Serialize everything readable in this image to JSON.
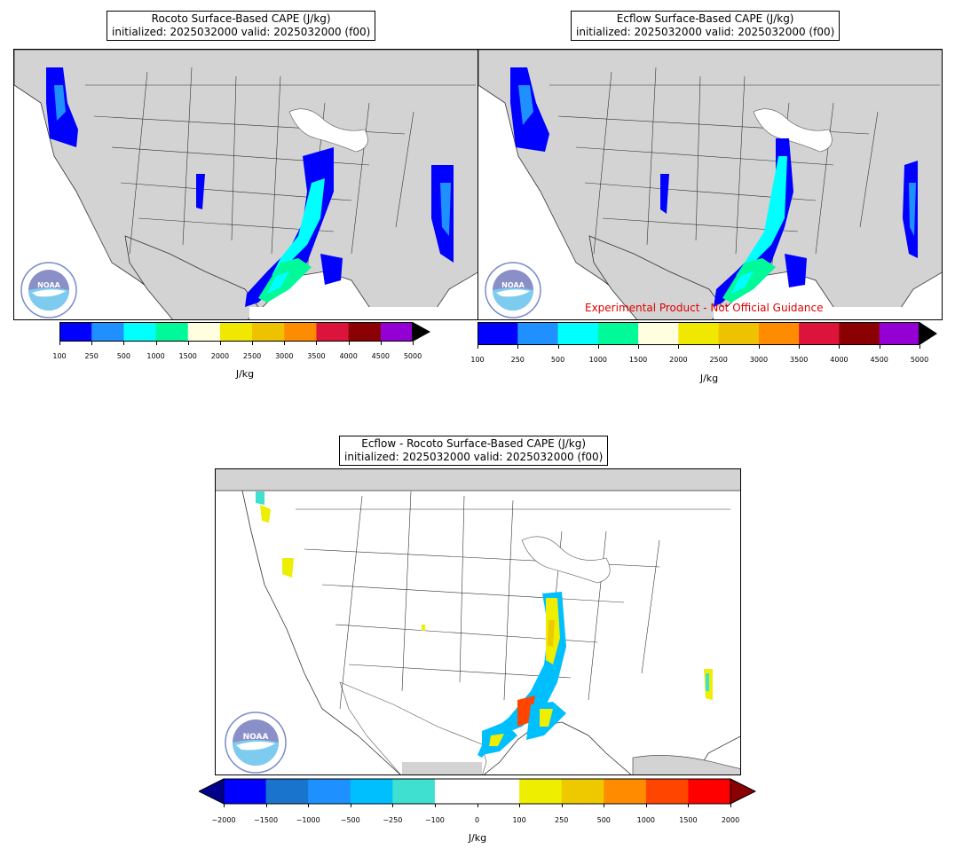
{
  "panels": [
    {
      "title_line1": "Rocoto Surface-Based CAPE (J/kg)",
      "title_line2": "initialized: 2025032000 valid: 2025032000 (f00)"
    },
    {
      "title_line1": "Ecflow Surface-Based CAPE (J/kg)",
      "title_line2": "initialized: 2025032000 valid: 2025032000 (f00)",
      "watermark": "Experimental Product - Not Official Guidance"
    },
    {
      "title_line1": "Ecflow - Rocoto Surface-Based CAPE (J/kg)",
      "title_line2": "initialized: 2025032000 valid: 2025032000 (f00)"
    }
  ],
  "cape_colorbar": {
    "unit": "J/kg",
    "ticks": [
      "100",
      "250",
      "500",
      "1000",
      "1500",
      "2000",
      "2500",
      "3000",
      "3500",
      "4000",
      "4500",
      "5000"
    ],
    "colors": [
      "#0000ff",
      "#1e90ff",
      "#00ffff",
      "#00fa9a",
      "#ffffe0",
      "#f0e800",
      "#eec200",
      "#ff8c00",
      "#dc143c",
      "#8b0000",
      "#9400d3"
    ],
    "extend_color": "#000000"
  },
  "diff_colorbar": {
    "unit": "J/kg",
    "ticks": [
      "−2000",
      "−1500",
      "−1000",
      "−500",
      "−250",
      "−100",
      "0",
      "100",
      "250",
      "500",
      "1000",
      "1500",
      "2000"
    ],
    "colors": [
      "#0000ff",
      "#1874cd",
      "#1e90ff",
      "#00bfff",
      "#40e0d0",
      "#ffffff",
      "#ffffff",
      "#eeee00",
      "#eec900",
      "#ff8c00",
      "#ff4500",
      "#ff0000"
    ],
    "extend_low": "#00008b",
    "extend_high": "#8b0000"
  },
  "logo": {
    "text": "NOAA",
    "ring_text": "NATIONAL OCEANIC AND ATMOSPHERIC ADMINISTRATION · U.S. DEPARTMENT OF COMMERCE"
  }
}
